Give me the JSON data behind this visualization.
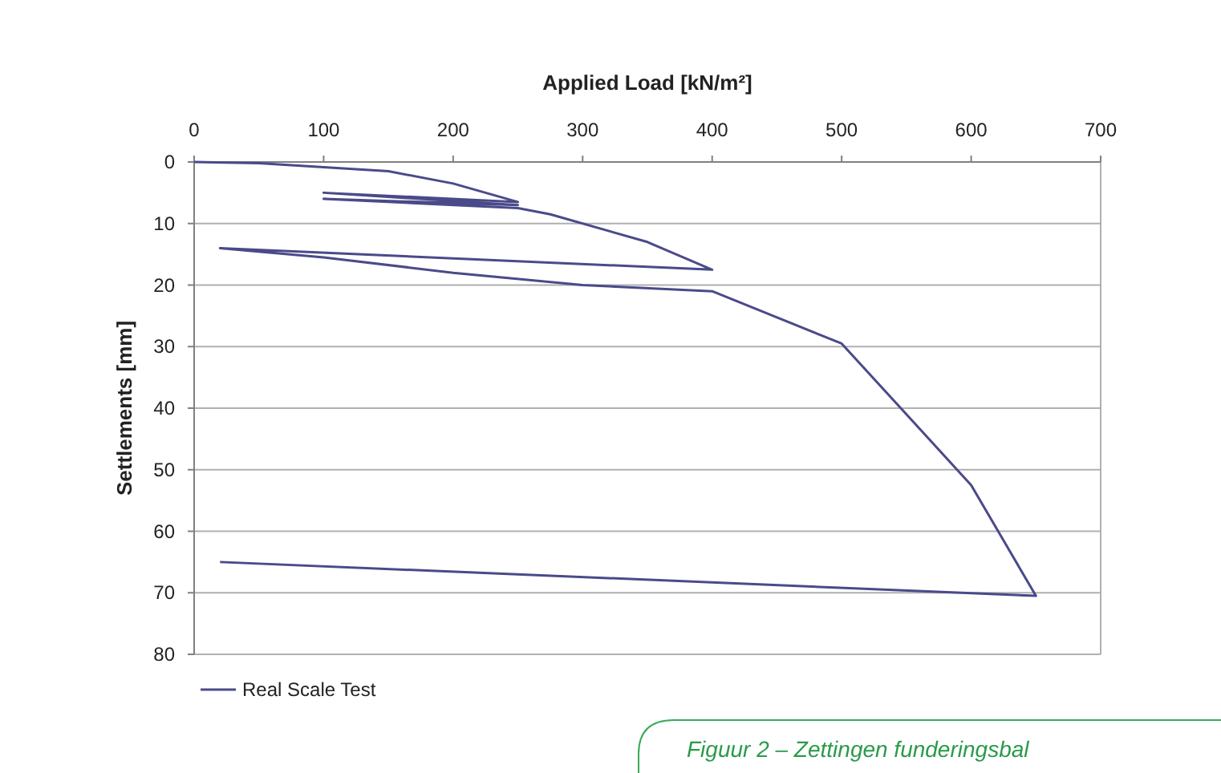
{
  "chart_data": {
    "type": "line",
    "xlabel": "Applied Load [kN/m²]",
    "ylabel": "Settlements [mm]",
    "xlim": [
      0,
      700
    ],
    "xticks": [
      0,
      100,
      200,
      300,
      400,
      500,
      600,
      700
    ],
    "ylim": [
      80,
      0
    ],
    "yticks": [
      0,
      10,
      20,
      30,
      40,
      50,
      60,
      70,
      80
    ],
    "grid": "y",
    "legend": "bottom left",
    "line_style": "solid",
    "marker": "none",
    "series": [
      {
        "name": "Real Scale Test",
        "color": "#4a4a8a",
        "x": [
          0,
          50,
          150,
          200,
          250,
          100,
          250,
          100,
          250,
          275,
          350,
          400,
          20,
          100,
          200,
          300,
          400,
          500,
          600,
          650,
          20
        ],
        "values": [
          0,
          0.2,
          1.5,
          3.5,
          6.5,
          5,
          7,
          6,
          7.5,
          8.5,
          13,
          17.5,
          14,
          15.5,
          18,
          20,
          21,
          29.5,
          52.5,
          70.5,
          65
        ]
      }
    ],
    "annotations": [
      "Figuur 2 – Zettingen funderingsbal"
    ]
  }
}
